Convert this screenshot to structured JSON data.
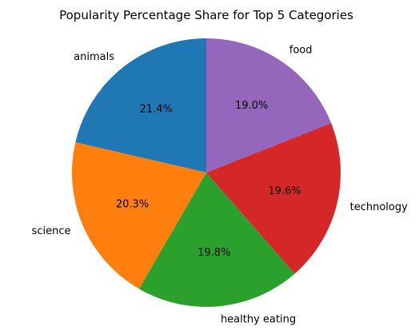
{
  "chart_data": {
    "type": "pie",
    "title": "Popularity Percentage Share for Top 5 Categories",
    "categories": [
      "animals",
      "science",
      "healthy eating",
      "technology",
      "food"
    ],
    "values": [
      21.4,
      20.3,
      19.8,
      19.6,
      19.0
    ],
    "percent_labels": [
      "21.4%",
      "20.3%",
      "19.8%",
      "19.6%",
      "19.0%"
    ],
    "colors": [
      "#1f77b4",
      "#ff7f0e",
      "#2ca02c",
      "#d62728",
      "#9467bd"
    ],
    "start_angle_deg": 90,
    "direction": "counterclockwise",
    "legend": "none"
  }
}
